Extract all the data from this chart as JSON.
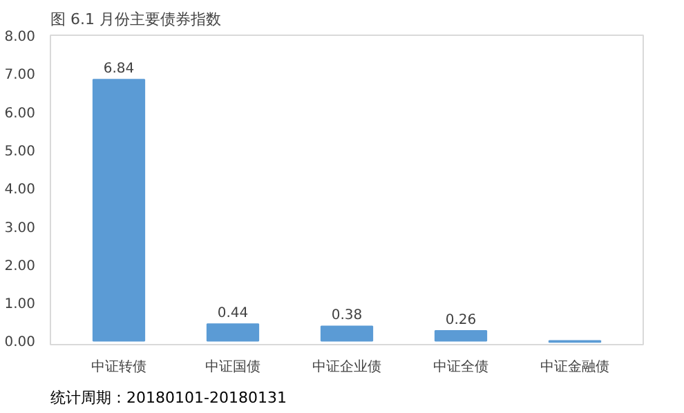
{
  "chart_data": {
    "type": "bar",
    "title": "图 6.1 月份主要债券指数",
    "categories": [
      "中证转债",
      "中证国债",
      "中证企业债",
      "中证全债",
      "中证金融债"
    ],
    "series": [
      {
        "color": "#5b9bd5",
        "values": [
          6.84,
          0.44,
          0.38,
          0.26,
          -0.03
        ],
        "value_labels": [
          "6.84",
          "0.44",
          "0.38",
          "0.26",
          null
        ]
      }
    ],
    "ylim": [
      -0.1,
      8
    ],
    "yticks": [
      {
        "value": 0,
        "label": "0.00"
      },
      {
        "value": 1,
        "label": "1.00"
      },
      {
        "value": 2,
        "label": "2.00"
      },
      {
        "value": 3,
        "label": "3.00"
      },
      {
        "value": 4,
        "label": "4.00"
      },
      {
        "value": 5,
        "label": "5.00"
      },
      {
        "value": 6,
        "label": "6.00"
      },
      {
        "value": 7,
        "label": "7.00"
      },
      {
        "value": 8,
        "label": "8.00"
      }
    ],
    "grid": false,
    "annotations": [
      "统计周期：20180101-20180131"
    ]
  }
}
